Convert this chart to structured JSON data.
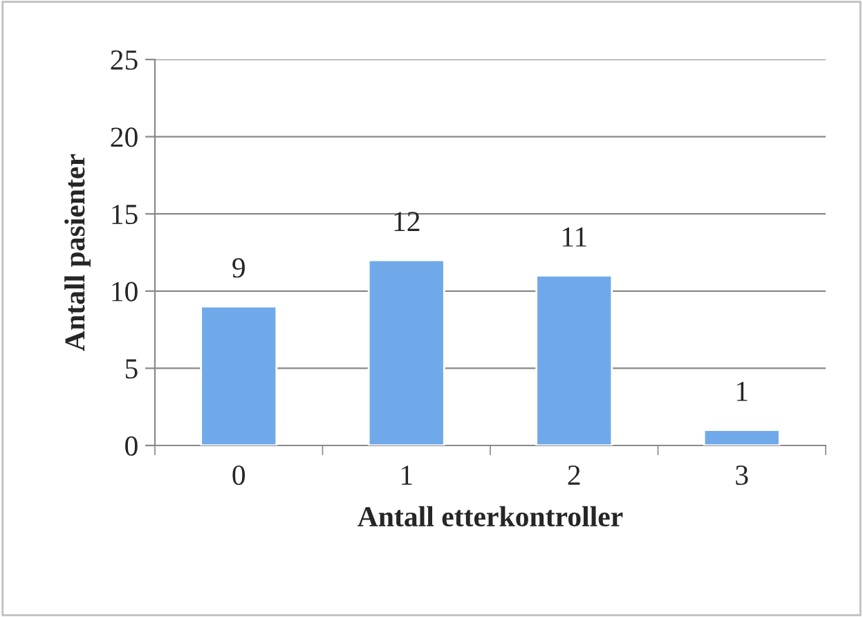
{
  "chart_data": {
    "type": "bar",
    "xlabel": "Antall etterkontroller",
    "ylabel": "Antall pasienter",
    "categories": [
      "0",
      "1",
      "2",
      "3"
    ],
    "values": [
      9,
      12,
      11,
      1
    ],
    "color": "#70a9ea",
    "ylim": [
      0,
      25
    ],
    "yticks": [
      0,
      5,
      10,
      15,
      20,
      25
    ],
    "grid": "y",
    "data_labels": true
  }
}
